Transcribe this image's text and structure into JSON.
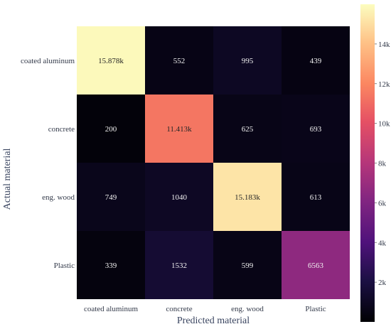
{
  "chart_data": {
    "type": "heatmap",
    "xlabel": "Predicted material",
    "ylabel": "Actual material",
    "x_categories": [
      "coated aluminum",
      "concrete",
      "eng. wood",
      "Plastic"
    ],
    "y_categories": [
      "coated aluminum",
      "concrete",
      "eng. wood",
      "Plastic"
    ],
    "values": [
      [
        15878,
        552,
        995,
        439
      ],
      [
        200,
        11413,
        625,
        693
      ],
      [
        749,
        1040,
        15183,
        613
      ],
      [
        339,
        1532,
        599,
        6563
      ]
    ],
    "cell_labels": [
      [
        "15.878k",
        "552",
        "995",
        "439"
      ],
      [
        "200",
        "11.413k",
        "625",
        "693"
      ],
      [
        "749",
        "1040",
        "15.183k",
        "613"
      ],
      [
        "339",
        "1532",
        "599",
        "6563"
      ]
    ],
    "colormap": "magma",
    "colorbar": {
      "range": [
        0,
        16000
      ],
      "ticks": [
        2000,
        4000,
        6000,
        8000,
        10000,
        12000,
        14000
      ],
      "tick_labels": [
        "2k",
        "4k",
        "6k",
        "8k",
        "10k",
        "12k",
        "14k"
      ]
    },
    "grid": false
  }
}
